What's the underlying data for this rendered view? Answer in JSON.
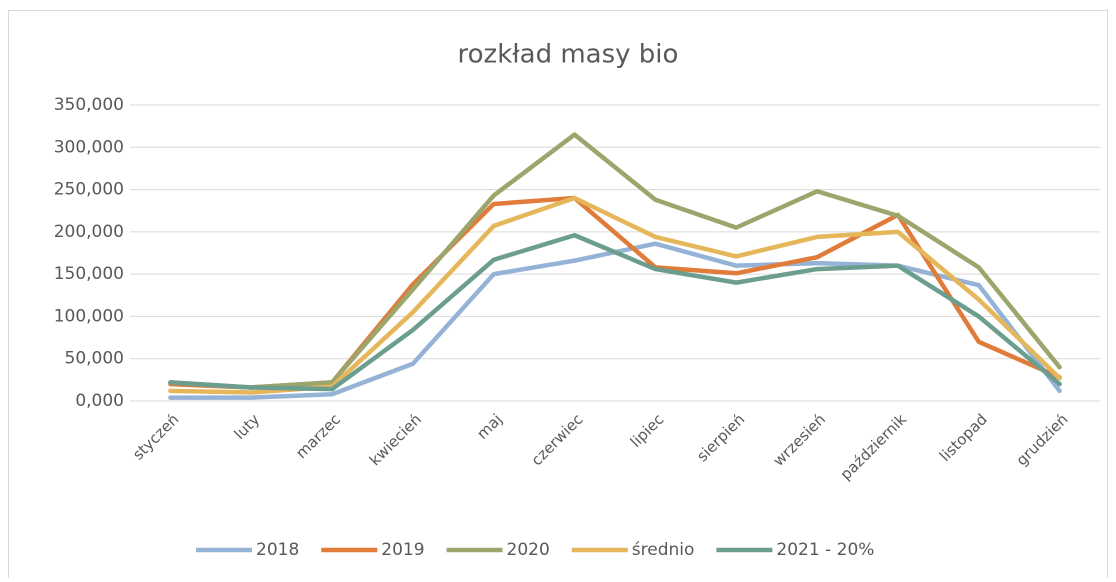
{
  "chart_data": {
    "type": "line",
    "title": "rozkład masy bio",
    "categories": [
      "styczeń",
      "luty",
      "marzec",
      "kwiecień",
      "maj",
      "czerwiec",
      "lipiec",
      "sierpień",
      "wrzesień",
      "październik",
      "listopad",
      "grudzień"
    ],
    "series": [
      {
        "name": "2018",
        "color": "#95b3d7",
        "values": [
          4000,
          4000,
          8000,
          44000,
          150000,
          166000,
          186000,
          160000,
          163000,
          160000,
          137000,
          12000
        ]
      },
      {
        "name": "2019",
        "color": "#e07b39",
        "values": [
          20000,
          16000,
          22000,
          138000,
          233000,
          240000,
          158000,
          151000,
          170000,
          220000,
          70000,
          28000
        ]
      },
      {
        "name": "2020",
        "color": "#9ca56c",
        "values": [
          22000,
          16000,
          22000,
          132000,
          243000,
          315000,
          238000,
          205000,
          248000,
          219000,
          158000,
          40000
        ]
      },
      {
        "name": "średnio",
        "color": "#e5b75a",
        "values": [
          12000,
          10000,
          17000,
          105000,
          207000,
          240000,
          194000,
          171000,
          194000,
          200000,
          120000,
          27000
        ]
      },
      {
        "name": "2021 - 20%",
        "color": "#6b9e8e",
        "values": [
          22000,
          16000,
          14000,
          84000,
          167000,
          196000,
          156000,
          140000,
          156000,
          160000,
          100000,
          20000
        ]
      }
    ],
    "ylim": [
      0,
      350000
    ],
    "yticks": [
      {
        "value": 0,
        "label": "0,000"
      },
      {
        "value": 50000,
        "label": "50,000"
      },
      {
        "value": 100000,
        "label": "100,000"
      },
      {
        "value": 150000,
        "label": "150,000"
      },
      {
        "value": 200000,
        "label": "200,000"
      },
      {
        "value": 250000,
        "label": "250,000"
      },
      {
        "value": 300000,
        "label": "300,000"
      },
      {
        "value": 350000,
        "label": "350,000"
      }
    ],
    "grid": true,
    "legend": "bottom"
  }
}
